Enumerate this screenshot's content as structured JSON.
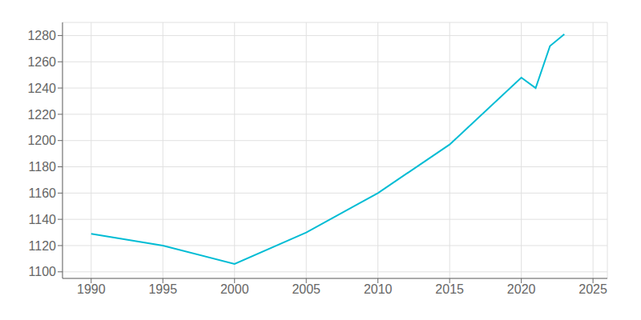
{
  "chart_data": {
    "type": "line",
    "x": [
      1990,
      1995,
      2000,
      2005,
      2010,
      2015,
      2020,
      2021,
      2022,
      2023
    ],
    "values": [
      1129,
      1120,
      1106,
      1130,
      1160,
      1197,
      1248,
      1240,
      1272,
      1281
    ],
    "color": "#00BCD4",
    "xlim": [
      1988,
      2026
    ],
    "ylim": [
      1095,
      1290
    ],
    "xticks": [
      1990,
      1995,
      2000,
      2005,
      2010,
      2015,
      2020,
      2025
    ],
    "yticks": [
      1100,
      1120,
      1140,
      1160,
      1180,
      1200,
      1220,
      1240,
      1260,
      1280
    ],
    "grid": true
  }
}
